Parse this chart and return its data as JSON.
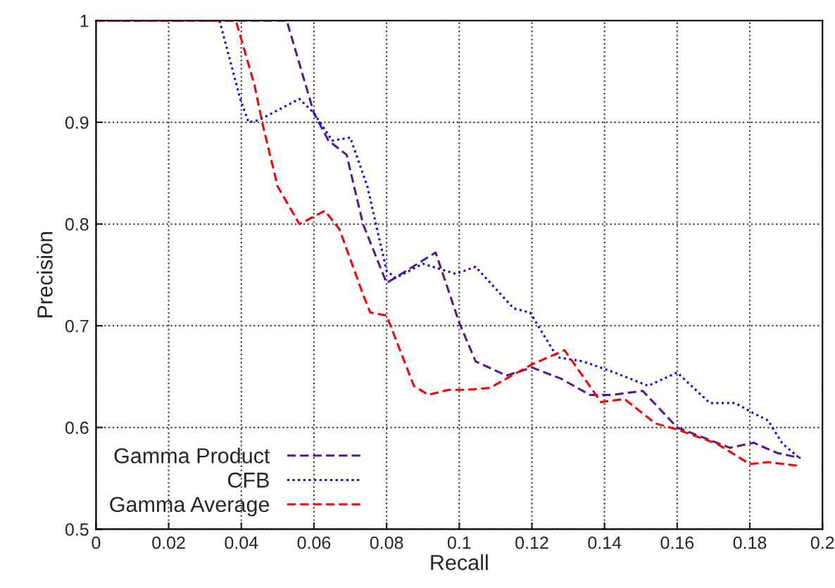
{
  "chart_data": {
    "type": "line",
    "xlabel": "Recall",
    "ylabel": "Precision",
    "xlim": [
      0,
      0.2
    ],
    "ylim": [
      0.5,
      1
    ],
    "xticks": [
      0,
      0.02,
      0.04,
      0.06,
      0.08,
      0.1,
      0.12,
      0.14,
      0.16,
      0.18,
      0.2
    ],
    "yticks": [
      0.5,
      0.6,
      0.7,
      0.8,
      0.9,
      1
    ],
    "grid": true,
    "legend": "bottom left",
    "marker": "none",
    "series": [
      {
        "name": "Gamma Product",
        "color": "#551a8b",
        "line_style": "dashed",
        "x": [
          0,
          0.0525,
          0.06,
          0.064,
          0.069,
          0.0735,
          0.08,
          0.0935,
          0.1,
          0.1045,
          0.113,
          0.12,
          0.128,
          0.136,
          0.142,
          0.1505,
          0.16,
          0.168,
          0.1745,
          0.181,
          0.1875,
          0.194
        ],
        "values": [
          1,
          1,
          0.909,
          0.882,
          0.868,
          0.8,
          0.742,
          0.772,
          0.703,
          0.665,
          0.651,
          0.659,
          0.648,
          0.632,
          0.632,
          0.636,
          0.6,
          0.589,
          0.58,
          0.585,
          0.575,
          0.57
        ]
      },
      {
        "name": "CFB",
        "color": "#0000ff",
        "line_style": "dotted",
        "x": [
          0,
          0.034,
          0.0397,
          0.042,
          0.0447,
          0.056,
          0.06,
          0.065,
          0.07,
          0.0747,
          0.08,
          0.0825,
          0.09,
          0.099,
          0.1045,
          0.115,
          0.1195,
          0.127,
          0.134,
          0.142,
          0.152,
          0.16,
          0.169,
          0.176,
          0.181,
          0.185,
          0.189,
          0.194
        ],
        "values": [
          1,
          1,
          0.923,
          0.9,
          0.902,
          0.923,
          0.909,
          0.882,
          0.885,
          0.837,
          0.754,
          0.747,
          0.761,
          0.751,
          0.758,
          0.717,
          0.713,
          0.669,
          0.665,
          0.655,
          0.641,
          0.654,
          0.624,
          0.624,
          0.614,
          0.607,
          0.584,
          0.569
        ]
      },
      {
        "name": "Gamma Average",
        "color": "#ff0000",
        "line_style": "dashed",
        "x": [
          0,
          0.0385,
          0.0436,
          0.046,
          0.05,
          0.056,
          0.063,
          0.067,
          0.0735,
          0.0755,
          0.08,
          0.0875,
          0.0915,
          0.097,
          0.102,
          0.1085,
          0.12,
          0.129,
          0.139,
          0.1455,
          0.154,
          0.16,
          0.171,
          0.18,
          0.185,
          0.194
        ],
        "values": [
          1,
          1,
          0.937,
          0.896,
          0.837,
          0.8,
          0.813,
          0.795,
          0.731,
          0.713,
          0.71,
          0.641,
          0.632,
          0.637,
          0.637,
          0.639,
          0.662,
          0.676,
          0.625,
          0.628,
          0.604,
          0.598,
          0.584,
          0.564,
          0.566,
          0.562
        ]
      }
    ]
  }
}
